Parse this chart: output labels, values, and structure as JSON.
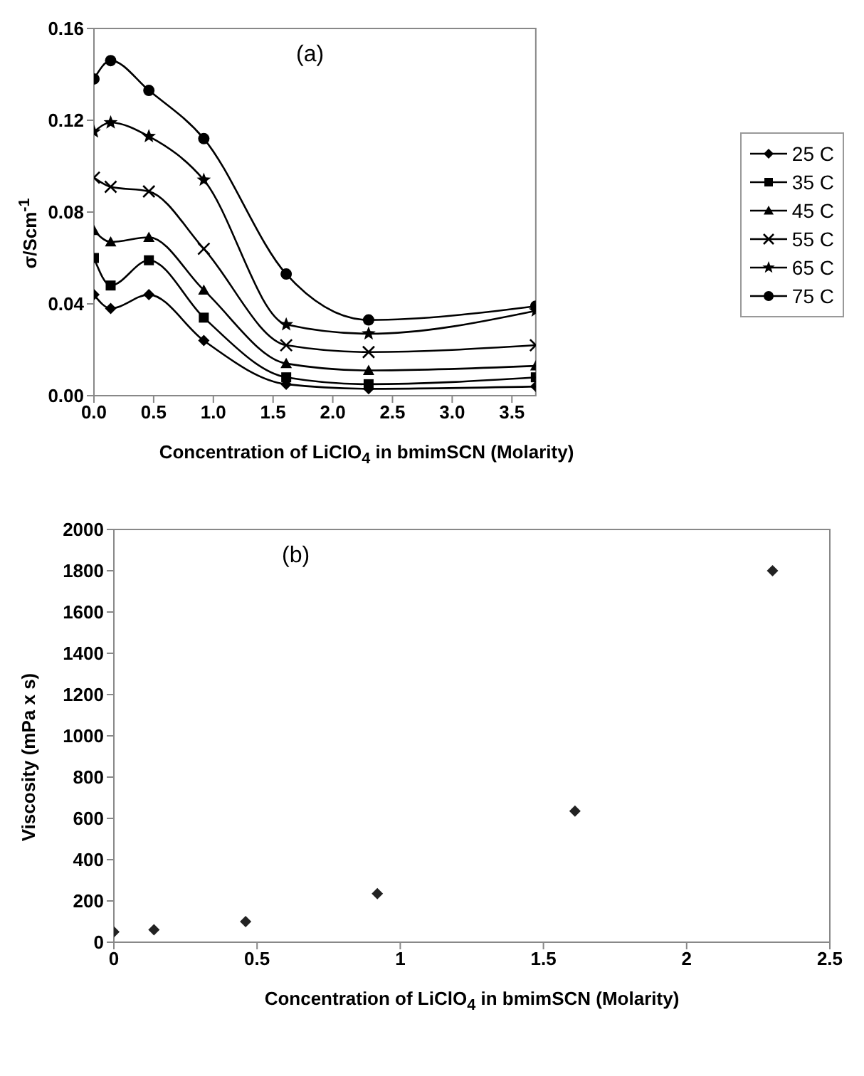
{
  "chart_data": [
    {
      "type": "line",
      "xlabel": "Concentration of LiClO$_{4}$ in bmimSCN (Molarity)",
      "ylabel": "σ/Scm$^{-1}$",
      "annotations": [
        "(a)"
      ],
      "x": [
        0,
        0.14,
        0.46,
        0.92,
        1.61,
        2.3,
        3.7
      ],
      "xlim": [
        0,
        3.7
      ],
      "xticks": [
        {
          "value": 0,
          "label": "0.0"
        },
        {
          "value": 0.5,
          "label": "0.5"
        },
        {
          "value": 1,
          "label": "1.0"
        },
        {
          "value": 1.5,
          "label": "1.5"
        },
        {
          "value": 2,
          "label": "2.0"
        },
        {
          "value": 2.5,
          "label": "2.5"
        },
        {
          "value": 3,
          "label": "3.0"
        },
        {
          "value": 3.5,
          "label": "3.5"
        }
      ],
      "ylim": [
        0,
        0.16
      ],
      "yticks": [
        {
          "value": 0,
          "label": "0.00"
        },
        {
          "value": 0.04,
          "label": "0.04"
        },
        {
          "value": 0.08,
          "label": "0.08"
        },
        {
          "value": 0.12,
          "label": "0.12"
        },
        {
          "value": 0.16,
          "label": "0.16"
        }
      ],
      "legend": "right",
      "series": [
        {
          "name": "25 C",
          "color": "#000000",
          "marker": "diamond",
          "values": [
            0.044,
            0.038,
            0.044,
            0.024,
            0.005,
            0.003,
            0.004
          ]
        },
        {
          "name": "35 C",
          "color": "#000000",
          "marker": "square",
          "values": [
            0.06,
            0.048,
            0.059,
            0.034,
            0.008,
            0.005,
            0.008
          ]
        },
        {
          "name": "45 C",
          "color": "#000000",
          "marker": "triangle",
          "values": [
            0.072,
            0.067,
            0.069,
            0.046,
            0.014,
            0.011,
            0.013
          ]
        },
        {
          "name": "55 C",
          "color": "#000000",
          "marker": "cross",
          "values": [
            0.095,
            0.091,
            0.089,
            0.064,
            0.022,
            0.019,
            0.022
          ]
        },
        {
          "name": "65 C",
          "color": "#000000",
          "marker": "star",
          "values": [
            0.115,
            0.119,
            0.113,
            0.094,
            0.031,
            0.027,
            0.037
          ]
        },
        {
          "name": "75 C",
          "color": "#000000",
          "marker": "circle",
          "values": [
            0.138,
            0.146,
            0.133,
            0.112,
            0.053,
            0.033,
            0.039
          ]
        }
      ]
    },
    {
      "type": "scatter",
      "xlabel": "Concentration of LiClO$_{4}$ in bmimSCN (Molarity)",
      "ylabel": "Viscosity (mPa x s)",
      "annotations": [
        "(b)"
      ],
      "x": [
        0,
        0.14,
        0.46,
        0.92,
        1.61,
        2.3
      ],
      "xlim": [
        0,
        2.5
      ],
      "xticks": [
        0,
        0.5,
        1,
        1.5,
        2,
        2.5
      ],
      "ylim": [
        0,
        2000
      ],
      "yticks": [
        0,
        200,
        400,
        600,
        800,
        1000,
        1200,
        1400,
        1600,
        1800,
        2000
      ],
      "marker": "diamond",
      "series": [
        {
          "color": "#222222",
          "values": [
            50,
            60,
            100,
            235,
            635,
            1800
          ]
        }
      ]
    }
  ]
}
